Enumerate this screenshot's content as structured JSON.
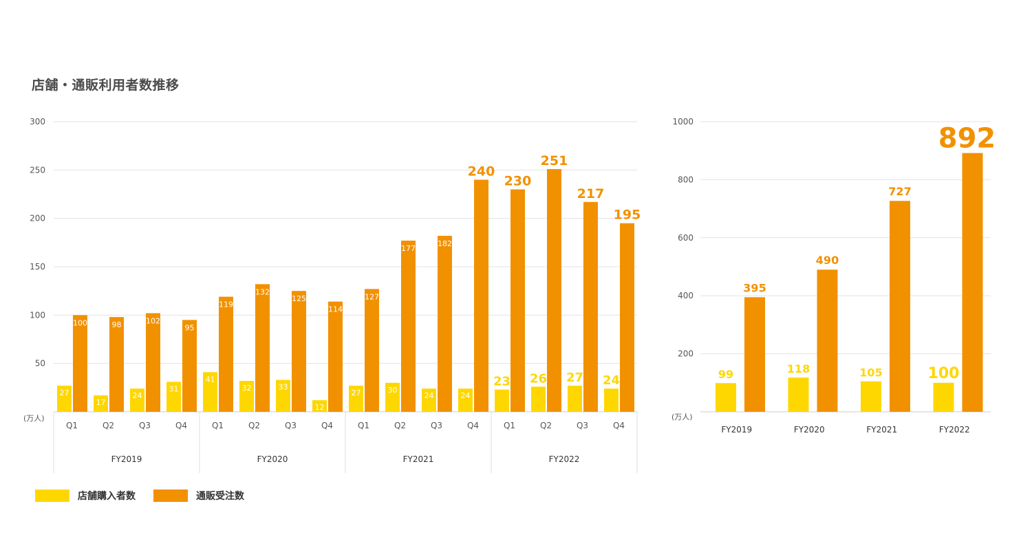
{
  "title": "店舗・通販利用者数推移",
  "colors": {
    "store": "#FFD700",
    "mail": "#F29100",
    "grid": "#e3e3e3",
    "axis_text": "#555555",
    "label_white": "#ffffff"
  },
  "legend": {
    "store": "店舗購入者数",
    "mail": "通販受注数"
  },
  "chart_data": [
    {
      "type": "bar",
      "unit_label": "(万人)",
      "ylim": [
        0,
        300
      ],
      "yticks": [
        "50",
        "100",
        "150",
        "200",
        "250",
        "300"
      ],
      "groups": [
        "FY2019",
        "FY2020",
        "FY2021",
        "FY2022"
      ],
      "categories": [
        "Q1",
        "Q2",
        "Q3",
        "Q4",
        "Q1",
        "Q2",
        "Q3",
        "Q4",
        "Q1",
        "Q2",
        "Q3",
        "Q4",
        "Q1",
        "Q2",
        "Q3",
        "Q4"
      ],
      "series": [
        {
          "name": "店舗購入者数",
          "values": [
            27,
            17,
            24,
            31,
            41,
            32,
            33,
            12,
            27,
            30,
            24,
            24,
            23,
            26,
            27,
            24
          ]
        },
        {
          "name": "通販受注数",
          "values": [
            100,
            98,
            102,
            95,
            119,
            132,
            125,
            114,
            127,
            177,
            182,
            240,
            230,
            251,
            217,
            195
          ]
        }
      ],
      "grid": true
    },
    {
      "type": "bar",
      "unit_label": "(万人)",
      "ylim": [
        0,
        1000
      ],
      "yticks": [
        "200",
        "400",
        "600",
        "800",
        "1000"
      ],
      "categories": [
        "FY2019",
        "FY2020",
        "FY2021",
        "FY2022"
      ],
      "series": [
        {
          "name": "店舗購入者数",
          "values": [
            99,
            118,
            105,
            100
          ]
        },
        {
          "name": "通販受注数",
          "values": [
            395,
            490,
            727,
            892
          ]
        }
      ],
      "grid": true
    }
  ]
}
